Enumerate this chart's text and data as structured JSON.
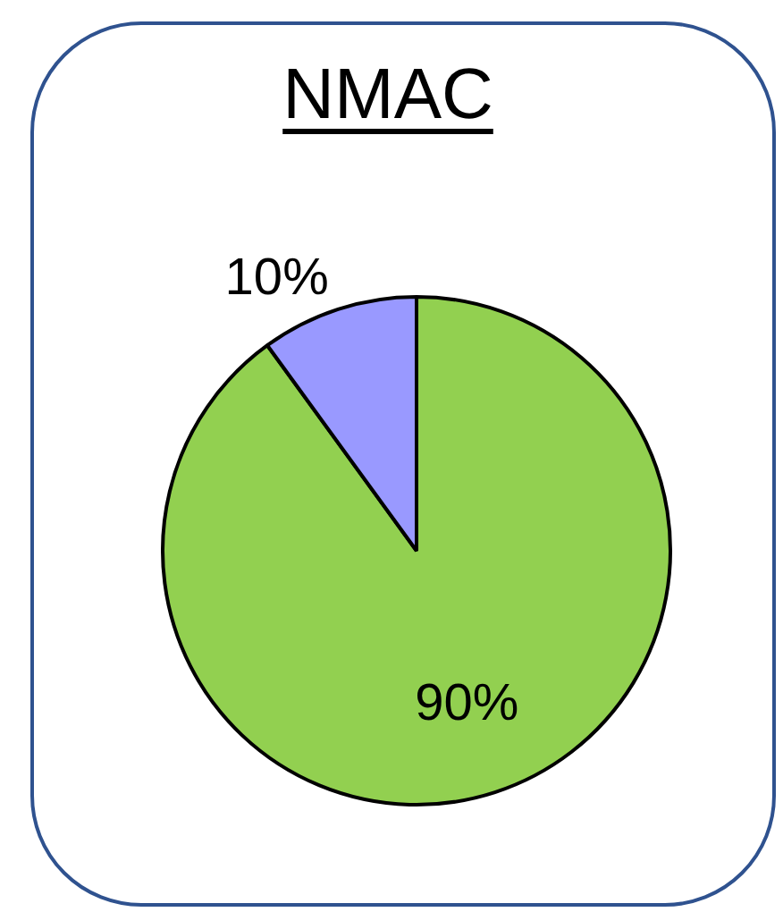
{
  "chart_data": {
    "type": "pie",
    "title": "NMAC",
    "categories": [
      null,
      null
    ],
    "values": [
      90,
      10
    ],
    "colors": [
      "#92d050",
      "#9999ff"
    ],
    "value_labels": [
      "90%",
      "10%"
    ]
  }
}
